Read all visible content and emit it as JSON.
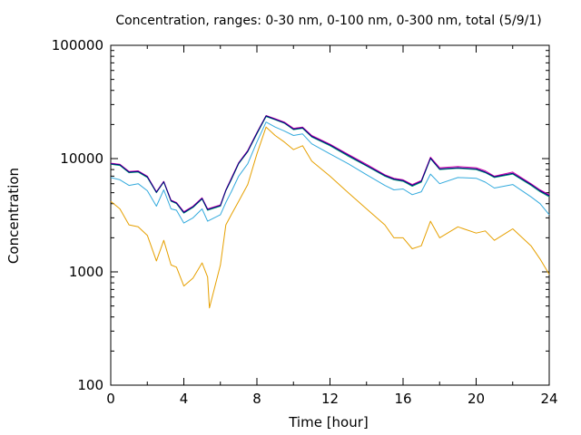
{
  "chart_data": {
    "type": "line",
    "title": "Concentration, ranges: 0-30 nm, 0-100 nm, 0-300 nm, total (5/9/1)",
    "xlabel": "Time [hour]",
    "ylabel": "Concentration",
    "x_range": [
      0,
      24
    ],
    "y_range": [
      100,
      100000
    ],
    "y_scale": "log",
    "grid": false,
    "legend": "none",
    "x_ticks": [
      "0",
      "4",
      "8",
      "12",
      "16",
      "20",
      "24"
    ],
    "y_ticks": [
      "100",
      "1000",
      "10000",
      "100000"
    ],
    "series": [
      {
        "color": "#e6a000",
        "points": [
          [
            0,
            4200
          ],
          [
            0.5,
            3600
          ],
          [
            1,
            2600
          ],
          [
            1.5,
            2500
          ],
          [
            2,
            2100
          ],
          [
            2.5,
            1250
          ],
          [
            2.9,
            1900
          ],
          [
            3.3,
            1150
          ],
          [
            3.6,
            1100
          ],
          [
            4,
            750
          ],
          [
            4.5,
            880
          ],
          [
            5,
            1200
          ],
          [
            5.3,
            900
          ],
          [
            5.4,
            480
          ],
          [
            6,
            1150
          ],
          [
            6.3,
            2600
          ],
          [
            6.6,
            3200
          ],
          [
            7,
            4200
          ],
          [
            7.5,
            5900
          ],
          [
            8,
            11000
          ],
          [
            8.5,
            19000
          ],
          [
            9,
            16000
          ],
          [
            9.5,
            14000
          ],
          [
            10,
            12000
          ],
          [
            10.5,
            13000
          ],
          [
            11,
            9500
          ],
          [
            12,
            7000
          ],
          [
            13,
            5000
          ],
          [
            14,
            3600
          ],
          [
            15,
            2600
          ],
          [
            15.5,
            2000
          ],
          [
            16,
            2000
          ],
          [
            16.5,
            1600
          ],
          [
            17,
            1700
          ],
          [
            17.5,
            2800
          ],
          [
            18,
            2000
          ],
          [
            19,
            2500
          ],
          [
            20,
            2200
          ],
          [
            20.5,
            2300
          ],
          [
            21,
            1900
          ],
          [
            22,
            2400
          ],
          [
            23,
            1700
          ],
          [
            23.5,
            1300
          ],
          [
            24,
            950
          ]
        ]
      },
      {
        "color": "#33aadd",
        "points": [
          [
            0,
            6800
          ],
          [
            0.5,
            6500
          ],
          [
            1,
            5800
          ],
          [
            1.5,
            6000
          ],
          [
            2,
            5200
          ],
          [
            2.5,
            3800
          ],
          [
            2.9,
            5300
          ],
          [
            3.3,
            3600
          ],
          [
            3.6,
            3500
          ],
          [
            4,
            2700
          ],
          [
            4.5,
            3000
          ],
          [
            5,
            3600
          ],
          [
            5.3,
            2800
          ],
          [
            6,
            3200
          ],
          [
            6.3,
            4100
          ],
          [
            6.6,
            5100
          ],
          [
            7,
            7000
          ],
          [
            7.5,
            9000
          ],
          [
            8,
            14000
          ],
          [
            8.5,
            21000
          ],
          [
            9,
            19000
          ],
          [
            9.5,
            17500
          ],
          [
            10,
            16000
          ],
          [
            10.5,
            16500
          ],
          [
            11,
            13500
          ],
          [
            12,
            11000
          ],
          [
            13,
            9000
          ],
          [
            14,
            7200
          ],
          [
            15,
            5800
          ],
          [
            15.5,
            5300
          ],
          [
            16,
            5400
          ],
          [
            16.5,
            4800
          ],
          [
            17,
            5100
          ],
          [
            17.5,
            7300
          ],
          [
            18,
            6000
          ],
          [
            19,
            6800
          ],
          [
            20,
            6700
          ],
          [
            20.5,
            6200
          ],
          [
            21,
            5500
          ],
          [
            22,
            5900
          ],
          [
            23,
            4600
          ],
          [
            23.5,
            4000
          ],
          [
            24,
            3200
          ]
        ]
      },
      {
        "color": "#009e73",
        "points": [
          [
            0,
            8900
          ],
          [
            0.5,
            8700
          ],
          [
            1,
            7500
          ],
          [
            1.5,
            7600
          ],
          [
            2,
            6800
          ],
          [
            2.5,
            5000
          ],
          [
            2.9,
            6200
          ],
          [
            3.3,
            4200
          ],
          [
            3.6,
            4000
          ],
          [
            4,
            3300
          ],
          [
            4.5,
            3700
          ],
          [
            5,
            4400
          ],
          [
            5.3,
            3500
          ],
          [
            6,
            3800
          ],
          [
            6.3,
            5200
          ],
          [
            6.6,
            6500
          ],
          [
            7,
            9000
          ],
          [
            7.5,
            11500
          ],
          [
            8,
            16500
          ],
          [
            8.5,
            23500
          ],
          [
            9,
            22000
          ],
          [
            9.5,
            20500
          ],
          [
            10,
            18000
          ],
          [
            10.5,
            18500
          ],
          [
            11,
            15500
          ],
          [
            12,
            13000
          ],
          [
            13,
            10500
          ],
          [
            14,
            8600
          ],
          [
            15,
            7000
          ],
          [
            15.5,
            6500
          ],
          [
            16,
            6300
          ],
          [
            16.5,
            5700
          ],
          [
            17,
            6200
          ],
          [
            17.5,
            10000
          ],
          [
            18,
            8000
          ],
          [
            19,
            8200
          ],
          [
            20,
            8000
          ],
          [
            20.5,
            7500
          ],
          [
            21,
            6800
          ],
          [
            22,
            7300
          ],
          [
            23,
            5800
          ],
          [
            23.5,
            5100
          ],
          [
            24,
            4600
          ]
        ]
      },
      {
        "color": "#cc00aa",
        "points": [
          [
            0,
            9100
          ],
          [
            0.5,
            8900
          ],
          [
            1,
            7700
          ],
          [
            1.5,
            7800
          ],
          [
            2,
            7000
          ],
          [
            2.5,
            5100
          ],
          [
            2.9,
            6300
          ],
          [
            3.3,
            4300
          ],
          [
            3.6,
            4100
          ],
          [
            4,
            3400
          ],
          [
            4.5,
            3800
          ],
          [
            5,
            4500
          ],
          [
            5.3,
            3600
          ],
          [
            6,
            3900
          ],
          [
            6.3,
            5300
          ],
          [
            6.6,
            6700
          ],
          [
            7,
            9200
          ],
          [
            7.5,
            11800
          ],
          [
            8,
            17000
          ],
          [
            8.5,
            24000
          ],
          [
            9,
            22500
          ],
          [
            9.5,
            21000
          ],
          [
            10,
            18500
          ],
          [
            10.5,
            19000
          ],
          [
            11,
            16000
          ],
          [
            12,
            13400
          ],
          [
            13,
            10900
          ],
          [
            14,
            8900
          ],
          [
            15,
            7200
          ],
          [
            15.5,
            6700
          ],
          [
            16,
            6500
          ],
          [
            16.5,
            5900
          ],
          [
            17,
            6400
          ],
          [
            17.5,
            10300
          ],
          [
            18,
            8300
          ],
          [
            19,
            8500
          ],
          [
            20,
            8300
          ],
          [
            20.5,
            7800
          ],
          [
            21,
            7000
          ],
          [
            22,
            7600
          ],
          [
            23,
            6000
          ],
          [
            23.5,
            5300
          ],
          [
            24,
            4800
          ]
        ]
      },
      {
        "color": "#000080",
        "points": [
          [
            0,
            9000
          ],
          [
            0.5,
            8800
          ],
          [
            1,
            7600
          ],
          [
            1.5,
            7700
          ],
          [
            2,
            6900
          ],
          [
            2.5,
            5050
          ],
          [
            2.9,
            6250
          ],
          [
            3.3,
            4250
          ],
          [
            3.6,
            4050
          ],
          [
            4,
            3350
          ],
          [
            4.5,
            3750
          ],
          [
            5,
            4450
          ],
          [
            5.3,
            3550
          ],
          [
            6,
            3850
          ],
          [
            6.3,
            5250
          ],
          [
            6.6,
            6600
          ],
          [
            7,
            9100
          ],
          [
            7.5,
            11600
          ],
          [
            8,
            16800
          ],
          [
            8.5,
            23800
          ],
          [
            9,
            22200
          ],
          [
            9.5,
            20700
          ],
          [
            10,
            18200
          ],
          [
            10.5,
            18700
          ],
          [
            11,
            15700
          ],
          [
            12,
            13200
          ],
          [
            13,
            10700
          ],
          [
            14,
            8700
          ],
          [
            15,
            7100
          ],
          [
            15.5,
            6600
          ],
          [
            16,
            6400
          ],
          [
            16.5,
            5800
          ],
          [
            17,
            6300
          ],
          [
            17.5,
            10100
          ],
          [
            18,
            8100
          ],
          [
            19,
            8300
          ],
          [
            20,
            8100
          ],
          [
            20.5,
            7600
          ],
          [
            21,
            6900
          ],
          [
            22,
            7400
          ],
          [
            23,
            5900
          ],
          [
            23.5,
            5200
          ],
          [
            24,
            4700
          ]
        ]
      }
    ]
  }
}
